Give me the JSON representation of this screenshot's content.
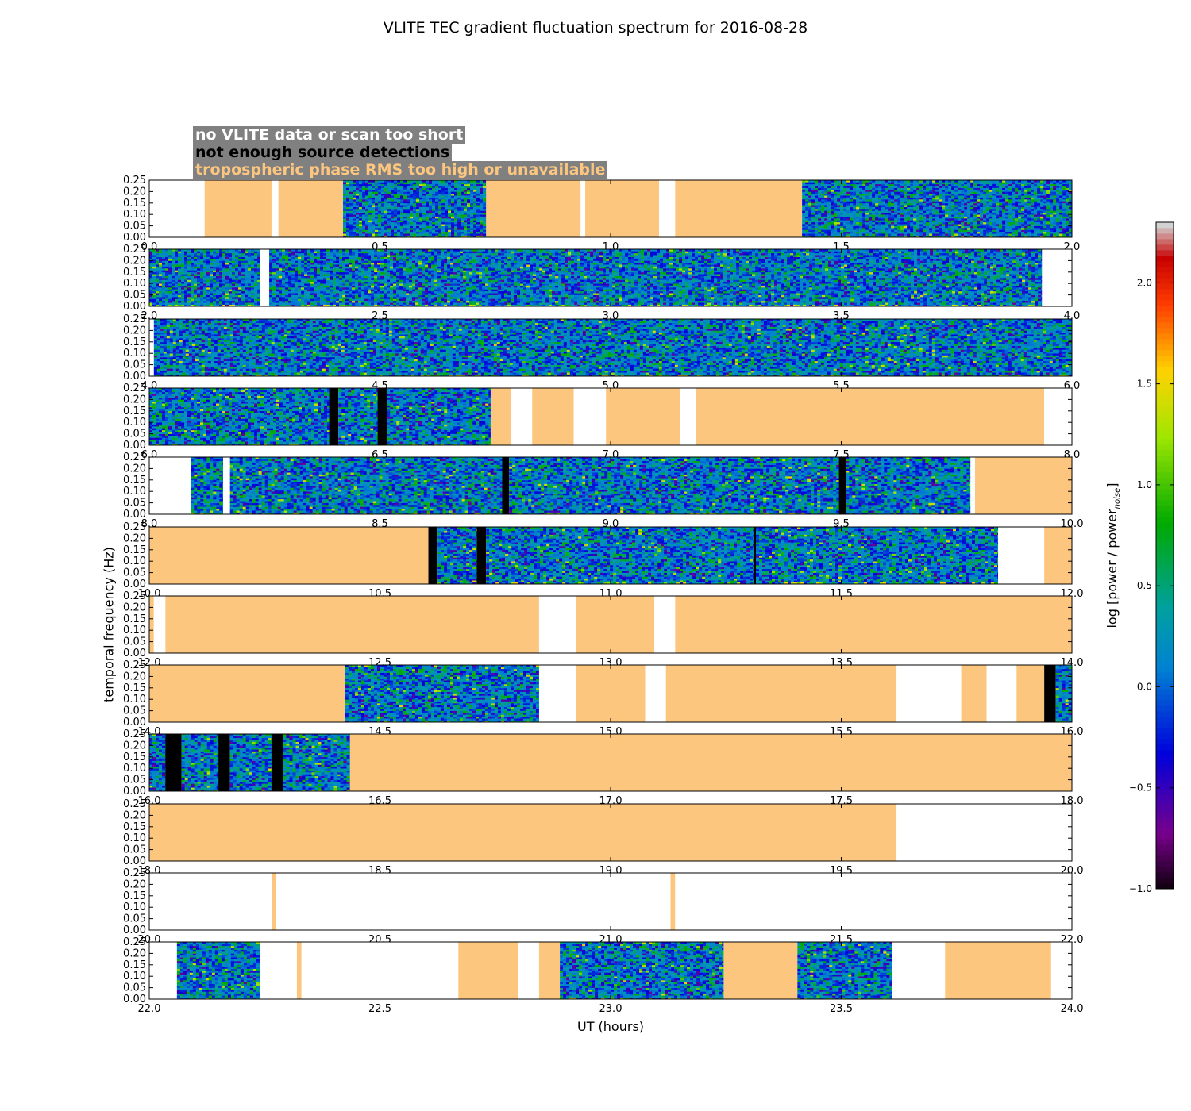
{
  "title": "VLITE TEC gradient fluctuation spectrum for 2016-08-28",
  "legend": [
    {
      "label": "no VLITE data or scan too short",
      "color": "#ffffff"
    },
    {
      "label": "not enough source detections",
      "color": "#000000"
    },
    {
      "label": "tropospheric phase RMS too high or unavailable",
      "color": "#fdc67f"
    }
  ],
  "colors": {
    "na": "#fdc67f",
    "black": "#000000",
    "white": "#ffffff"
  },
  "chart_data": {
    "type": "heatmap",
    "xlabel": "UT (hours)",
    "ylabel": "temporal frequency (Hz)",
    "colorbar_label": "log [power / power_noise]",
    "colorbar_ticks": [
      "−1.0",
      "−0.5",
      "0.0",
      "0.5",
      "1.0",
      "1.5",
      "2.0"
    ],
    "colorbar_range": [
      -1.0,
      2.3
    ],
    "ylim": [
      0,
      0.25
    ],
    "yticks": [
      "0.00",
      "0.05",
      "0.10",
      "0.15",
      "0.20",
      "0.25"
    ],
    "panels": [
      {
        "xlim": [
          0,
          2
        ],
        "xticks": [
          "0.0",
          "0.5",
          "1.0",
          "1.5",
          "2.0"
        ],
        "segments": [
          [
            0.0,
            0.12,
            "white"
          ],
          [
            0.12,
            0.265,
            "na"
          ],
          [
            0.265,
            0.28,
            "white"
          ],
          [
            0.28,
            0.42,
            "na"
          ],
          [
            0.42,
            0.73,
            "data"
          ],
          [
            0.73,
            0.935,
            "na"
          ],
          [
            0.935,
            0.945,
            "white"
          ],
          [
            0.945,
            1.105,
            "na"
          ],
          [
            1.105,
            1.14,
            "white"
          ],
          [
            1.14,
            1.415,
            "na"
          ],
          [
            1.415,
            2.0,
            "data"
          ]
        ]
      },
      {
        "xlim": [
          2,
          4
        ],
        "xticks": [
          "2.0",
          "2.5",
          "3.0",
          "3.5",
          "4.0"
        ],
        "segments": [
          [
            2.0,
            2.24,
            "data"
          ],
          [
            2.24,
            2.26,
            "white"
          ],
          [
            2.26,
            3.935,
            "data"
          ],
          [
            3.935,
            4.0,
            "white"
          ]
        ]
      },
      {
        "xlim": [
          4,
          6
        ],
        "xticks": [
          "4.0",
          "4.5",
          "5.0",
          "5.5",
          "6.0"
        ],
        "segments": [
          [
            4.0,
            4.01,
            "white"
          ],
          [
            4.01,
            6.0,
            "data"
          ]
        ]
      },
      {
        "xlim": [
          6,
          8
        ],
        "xticks": [
          "6.0",
          "6.5",
          "7.0",
          "7.5",
          "8.0"
        ],
        "segments": [
          [
            6.0,
            6.39,
            "data"
          ],
          [
            6.39,
            6.41,
            "black"
          ],
          [
            6.41,
            6.495,
            "data"
          ],
          [
            6.495,
            6.515,
            "black"
          ],
          [
            6.515,
            6.74,
            "data"
          ],
          [
            6.74,
            6.785,
            "na"
          ],
          [
            6.785,
            6.83,
            "white"
          ],
          [
            6.83,
            6.92,
            "na"
          ],
          [
            6.92,
            6.99,
            "white"
          ],
          [
            6.99,
            7.15,
            "na"
          ],
          [
            7.15,
            7.185,
            "white"
          ],
          [
            7.185,
            7.94,
            "na"
          ],
          [
            7.94,
            8.0,
            "white"
          ]
        ]
      },
      {
        "xlim": [
          8,
          10
        ],
        "xticks": [
          "8.0",
          "8.5",
          "9.0",
          "9.5",
          "10.0"
        ],
        "segments": [
          [
            8.0,
            8.09,
            "white"
          ],
          [
            8.09,
            8.16,
            "data"
          ],
          [
            8.16,
            8.175,
            "white"
          ],
          [
            8.175,
            8.765,
            "data"
          ],
          [
            8.765,
            8.78,
            "black"
          ],
          [
            8.78,
            9.495,
            "data"
          ],
          [
            9.495,
            9.51,
            "black"
          ],
          [
            9.51,
            9.78,
            "data"
          ],
          [
            9.78,
            9.79,
            "white"
          ],
          [
            9.79,
            10.0,
            "na"
          ]
        ]
      },
      {
        "xlim": [
          10,
          12
        ],
        "xticks": [
          "10.0",
          "10.5",
          "11.0",
          "11.5",
          "12.0"
        ],
        "segments": [
          [
            10.0,
            10.605,
            "na"
          ],
          [
            10.605,
            10.625,
            "black"
          ],
          [
            10.625,
            10.71,
            "data"
          ],
          [
            10.71,
            10.73,
            "black"
          ],
          [
            10.73,
            11.31,
            "data"
          ],
          [
            11.31,
            11.315,
            "black"
          ],
          [
            11.315,
            11.84,
            "data"
          ],
          [
            11.84,
            11.94,
            "white"
          ],
          [
            11.94,
            12.0,
            "na"
          ]
        ]
      },
      {
        "xlim": [
          12,
          14
        ],
        "xticks": [
          "12.0",
          "12.5",
          "13.0",
          "13.5",
          "14.0"
        ],
        "segments": [
          [
            12.0,
            12.01,
            "na"
          ],
          [
            12.01,
            12.035,
            "white"
          ],
          [
            12.035,
            12.845,
            "na"
          ],
          [
            12.845,
            12.925,
            "white"
          ],
          [
            12.925,
            13.095,
            "na"
          ],
          [
            13.095,
            13.14,
            "white"
          ],
          [
            13.14,
            14.0,
            "na"
          ]
        ]
      },
      {
        "xlim": [
          14,
          16
        ],
        "xticks": [
          "14.0",
          "14.5",
          "15.0",
          "15.5",
          "16.0"
        ],
        "segments": [
          [
            14.0,
            14.425,
            "na"
          ],
          [
            14.425,
            14.845,
            "data"
          ],
          [
            14.845,
            14.925,
            "white"
          ],
          [
            14.925,
            15.075,
            "na"
          ],
          [
            15.075,
            15.12,
            "white"
          ],
          [
            15.12,
            15.62,
            "na"
          ],
          [
            15.62,
            15.76,
            "white"
          ],
          [
            15.76,
            15.815,
            "na"
          ],
          [
            15.815,
            15.88,
            "white"
          ],
          [
            15.88,
            15.94,
            "na"
          ],
          [
            15.94,
            15.965,
            "black"
          ],
          [
            15.965,
            16.0,
            "data"
          ]
        ]
      },
      {
        "xlim": [
          16,
          18
        ],
        "xticks": [
          "16.0",
          "16.5",
          "17.0",
          "17.5",
          "18.0"
        ],
        "segments": [
          [
            16.0,
            16.035,
            "data"
          ],
          [
            16.035,
            16.07,
            "black"
          ],
          [
            16.07,
            16.15,
            "data"
          ],
          [
            16.15,
            16.175,
            "black"
          ],
          [
            16.175,
            16.265,
            "data"
          ],
          [
            16.265,
            16.29,
            "black"
          ],
          [
            16.29,
            16.435,
            "data"
          ],
          [
            16.435,
            18.0,
            "na"
          ]
        ]
      },
      {
        "xlim": [
          18,
          20
        ],
        "xticks": [
          "18.0",
          "18.5",
          "19.0",
          "19.5",
          "20.0"
        ],
        "segments": [
          [
            18.0,
            19.62,
            "na"
          ],
          [
            19.62,
            20.0,
            "white"
          ]
        ]
      },
      {
        "xlim": [
          20,
          22
        ],
        "xticks": [
          "20.0",
          "20.5",
          "21.0",
          "21.5",
          "22.0"
        ],
        "segments": [
          [
            20.0,
            20.265,
            "white"
          ],
          [
            20.265,
            20.275,
            "na"
          ],
          [
            20.275,
            21.13,
            "white"
          ],
          [
            21.13,
            21.14,
            "na"
          ],
          [
            21.14,
            22.0,
            "white"
          ]
        ]
      },
      {
        "xlim": [
          22,
          24
        ],
        "xticks": [
          "22.0",
          "22.5",
          "23.0",
          "23.5",
          "24.0"
        ],
        "segments": [
          [
            22.0,
            22.06,
            "white"
          ],
          [
            22.06,
            22.24,
            "data"
          ],
          [
            22.24,
            22.32,
            "white"
          ],
          [
            22.32,
            22.33,
            "na"
          ],
          [
            22.33,
            22.67,
            "white"
          ],
          [
            22.67,
            22.8,
            "na"
          ],
          [
            22.8,
            22.845,
            "white"
          ],
          [
            22.845,
            22.89,
            "na"
          ],
          [
            22.89,
            23.245,
            "data"
          ],
          [
            23.245,
            23.405,
            "na"
          ],
          [
            23.405,
            23.61,
            "data"
          ],
          [
            23.61,
            23.725,
            "white"
          ],
          [
            23.725,
            23.955,
            "na"
          ],
          [
            23.955,
            24.0,
            "white"
          ]
        ]
      }
    ]
  }
}
